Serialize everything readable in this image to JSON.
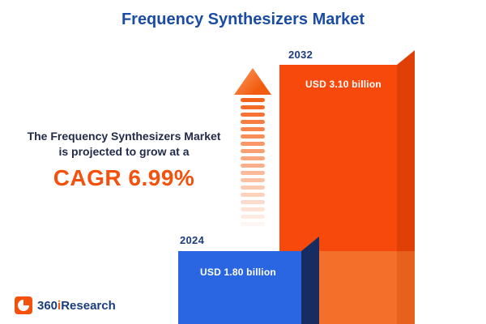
{
  "title": "Frequency Synthesizers Market",
  "annotation": {
    "line1": "The Frequency Synthesizers Market",
    "line2": "is projected to grow at a",
    "cagr_label": "CAGR 6.99%"
  },
  "chart_data": {
    "type": "bar",
    "title": "Frequency Synthesizers Market",
    "categories": [
      "2024",
      "2032"
    ],
    "values": [
      1.8,
      3.1
    ],
    "unit": "USD billion",
    "value_labels": [
      "USD 1.80 billion",
      "USD 3.10 billion"
    ],
    "cagr_percent": 6.99,
    "bar_colors": [
      "#2B66E2",
      "#F7490C"
    ],
    "legend": "none",
    "grid": "off"
  },
  "logo": {
    "prefix": "360",
    "i": "i",
    "suffix": "Research"
  },
  "colors": {
    "title_blue": "#1B4CA4",
    "navy_text": "#222B49",
    "year_label_navy": "#1B3C7D",
    "accent_orange": "#F4510C",
    "bar_blue": "#2B66E2",
    "bar_blue_side": "#172C60",
    "bar_orange": "#F7490C",
    "bar_orange_lower": "#F4702A",
    "bar_orange_side": "#E03F05",
    "value_text_white": "#FFFFFF",
    "background": "#FFFFFF"
  }
}
